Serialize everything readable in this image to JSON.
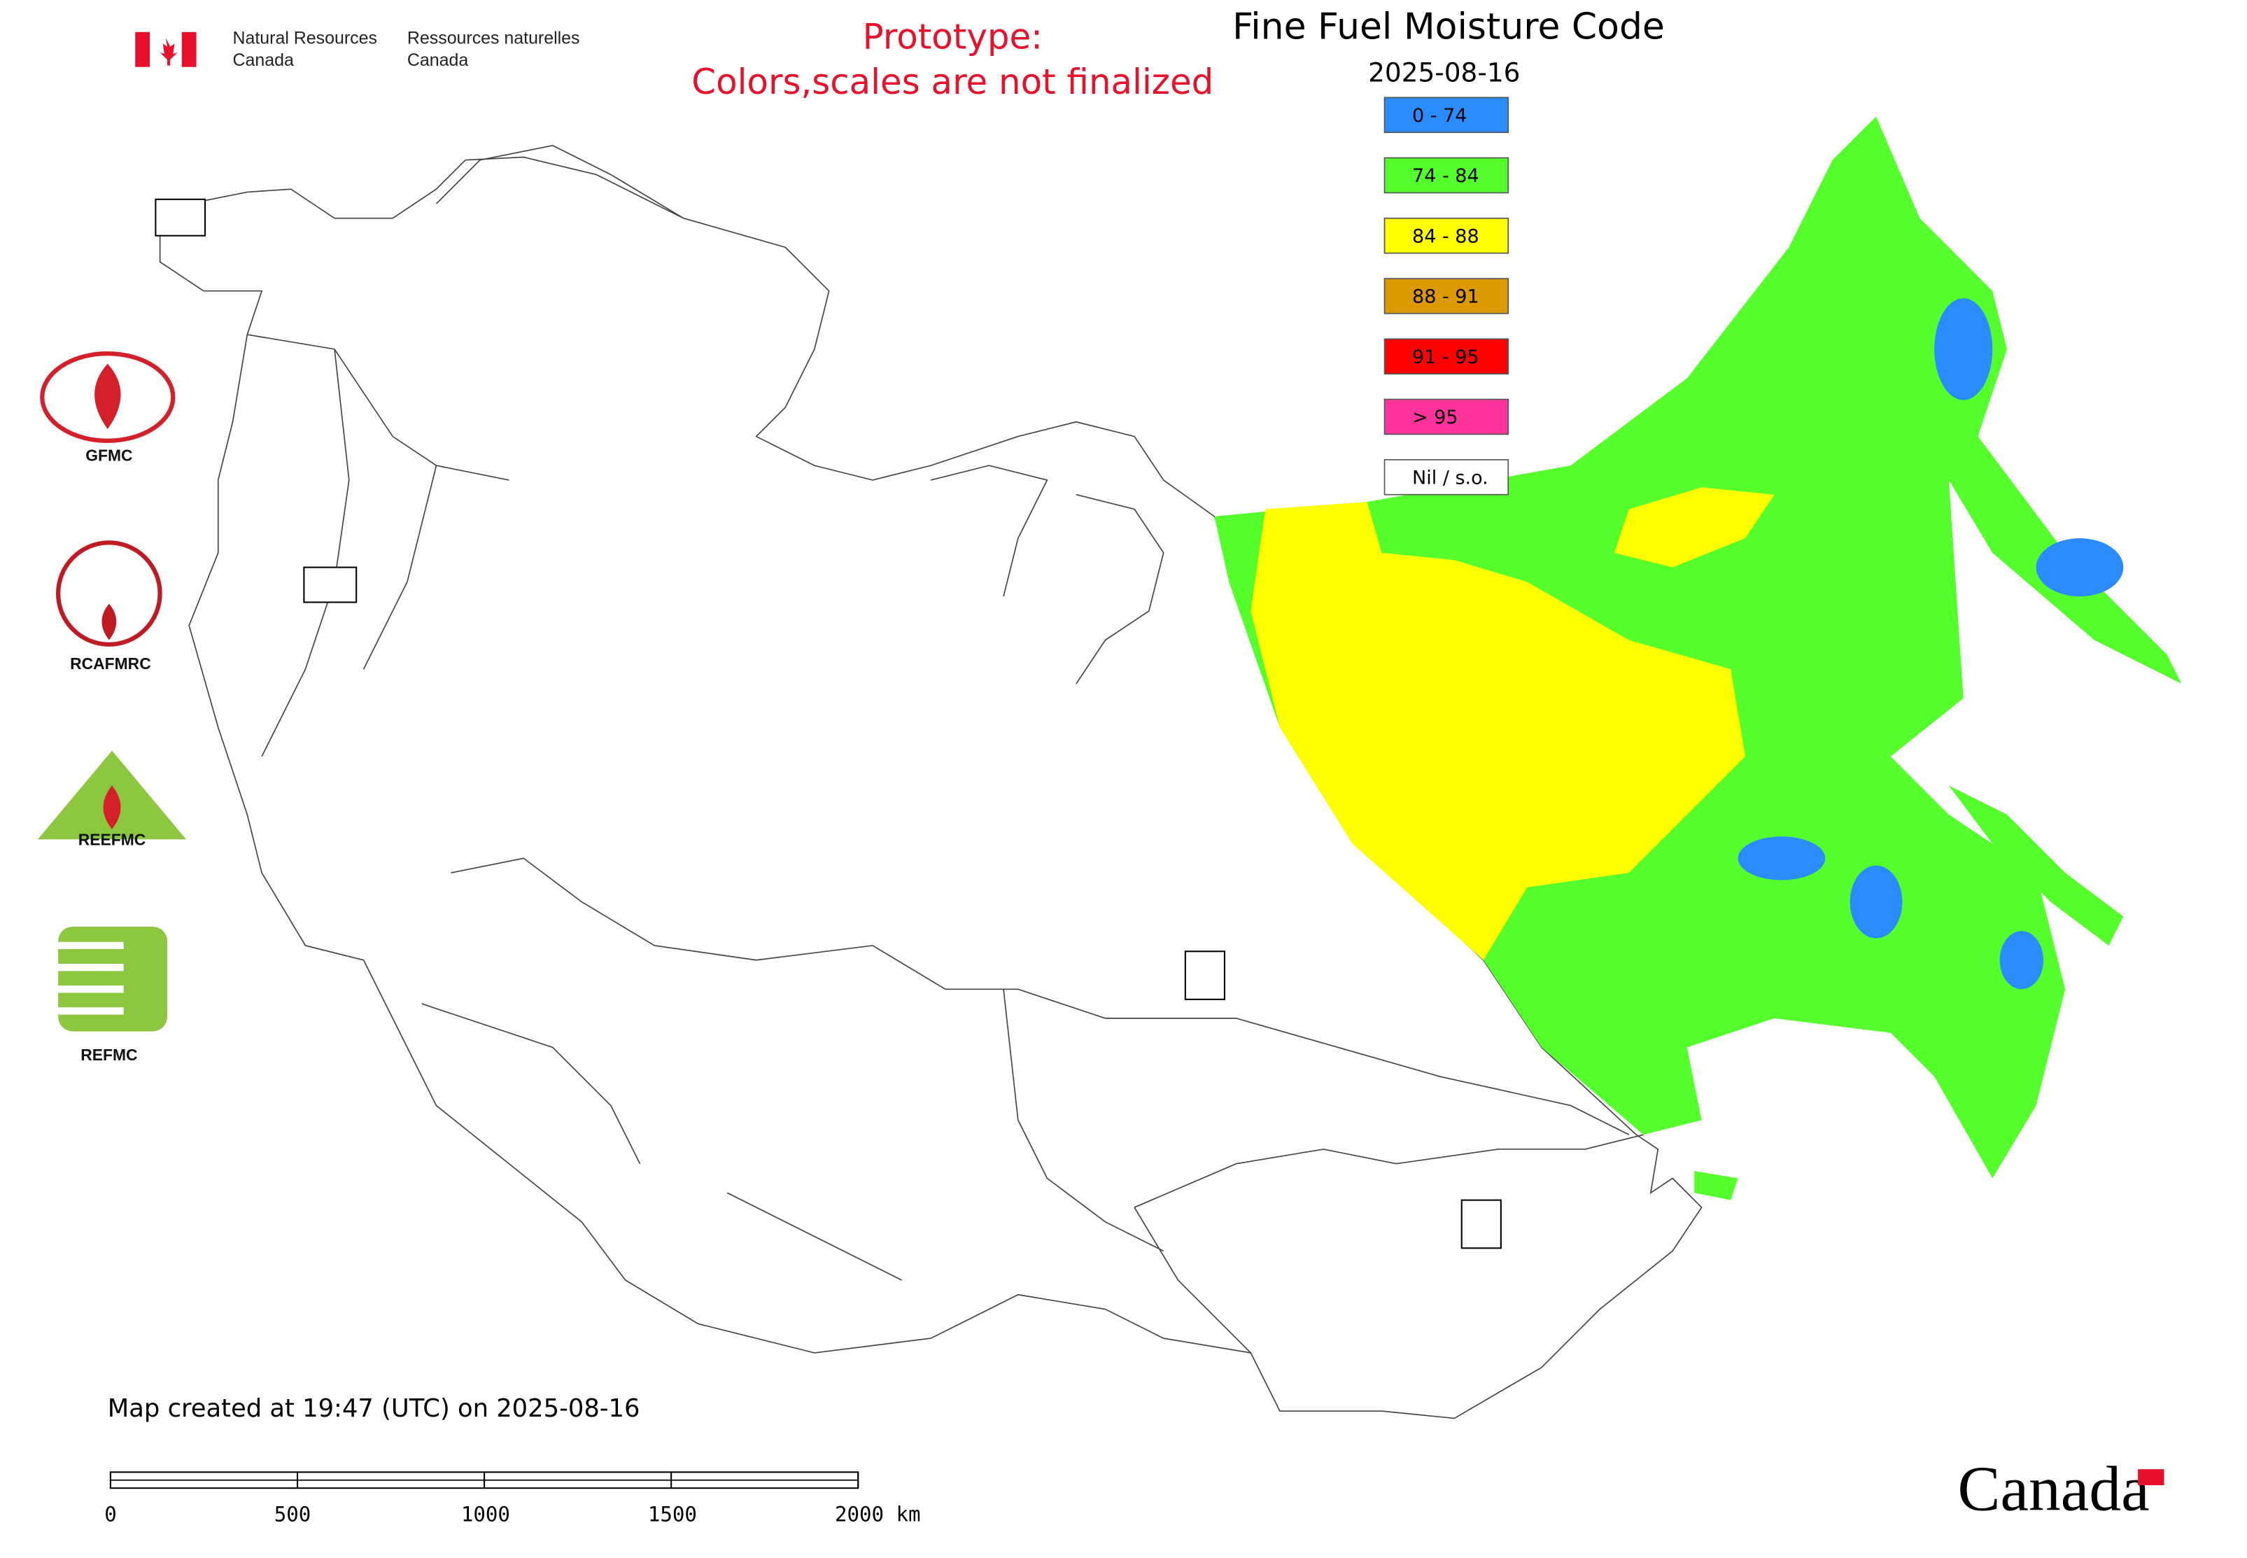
{
  "header": {
    "department_en": [
      "Natural Resources",
      "Canada"
    ],
    "department_fr": [
      "Ressources naturelles",
      "Canada"
    ]
  },
  "notice": [
    "Prototype:",
    "Colors,scales are not finalized"
  ],
  "map": {
    "title": "Fine Fuel Moisture Code",
    "date": "2025-08-16",
    "legend": [
      {
        "label": "0 - 74",
        "color": "#2a8cff"
      },
      {
        "label": "74 - 84",
        "color": "#55ff2b"
      },
      {
        "label": "84 - 88",
        "color": "#ffff00"
      },
      {
        "label": "88 - 91",
        "color": "#dd9900"
      },
      {
        "label": "91 - 95",
        "color": "#ff0000"
      },
      {
        "label": "> 95",
        "color": "#ff3399"
      },
      {
        "label": "Nil / s.o.",
        "color": "#ffffff"
      }
    ]
  },
  "logos": {
    "gfmc": "GFMC",
    "rcafmrc": "RCAFMRC",
    "reefmc": "REEFMC",
    "refmc": "REFMC"
  },
  "footer": {
    "created": "Map created at 19:47 (UTC) on 2025-08-16",
    "scale_labels": [
      "0",
      "500",
      "1000",
      "1500",
      "2000 km"
    ],
    "wordmark": "Canada"
  }
}
